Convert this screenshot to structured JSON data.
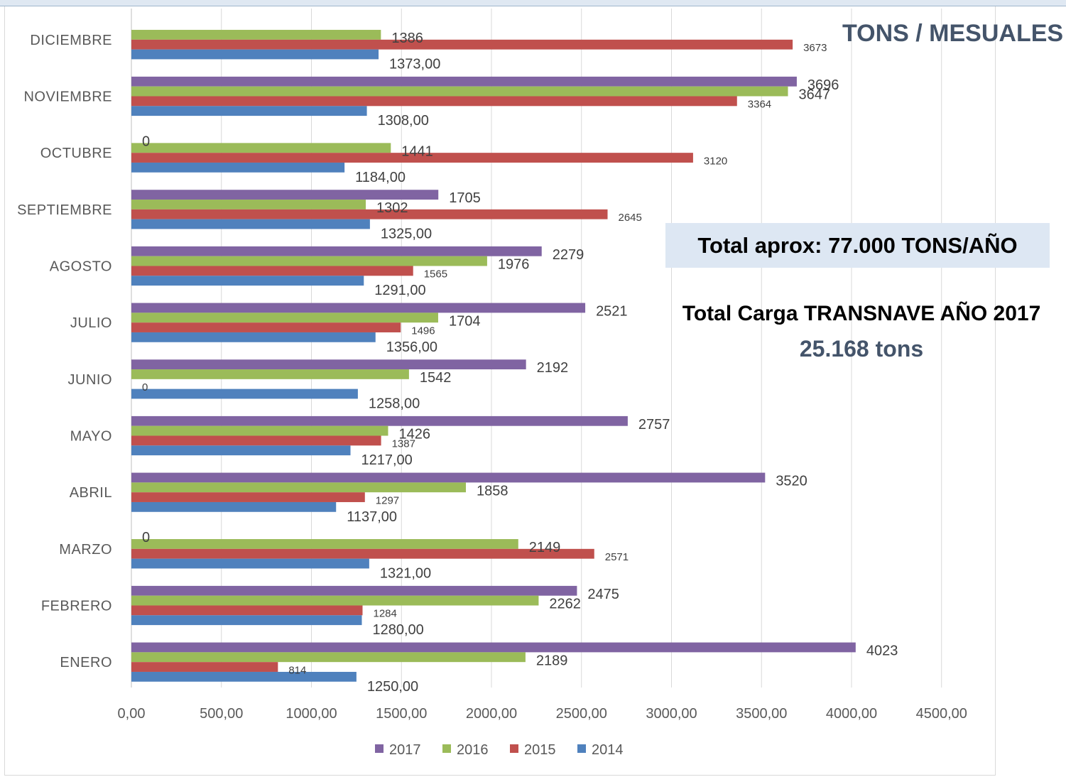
{
  "header": {
    "title": "TONS / MESUALES",
    "total_aprox": "Total aprox: 77.000 TONS/AÑO",
    "carga_title": "Total Carga TRANSNAVE AÑO 2017",
    "carga_value": "25.168 tons"
  },
  "chart_data": {
    "type": "bar",
    "orientation": "horizontal",
    "categories": [
      "ENERO",
      "FEBRERO",
      "MARZO",
      "ABRIL",
      "MAYO",
      "JUNIO",
      "JULIO",
      "AGOSTO",
      "SEPTIEMBRE",
      "OCTUBRE",
      "NOVIEMBRE",
      "DICIEMBRE"
    ],
    "series": [
      {
        "name": "2014",
        "color": "#4f81bd",
        "values": [
          1250,
          1280,
          1321,
          1137,
          1217,
          1258,
          1356,
          1291,
          1325,
          1184,
          1308,
          1373
        ],
        "labels": [
          "1250,00",
          "1280,00",
          "1321,00",
          "1137,00",
          "1217,00",
          "1258,00",
          "1356,00",
          "1291,00",
          "1325,00",
          "1184,00",
          "1308,00",
          "1373,00"
        ]
      },
      {
        "name": "2015",
        "color": "#c0504d",
        "values": [
          814,
          1284,
          2571,
          1297,
          1387,
          0,
          1496,
          1565,
          2645,
          3120,
          3364,
          3673
        ],
        "labels": [
          "814",
          "1284",
          "2571",
          "1297",
          "1387",
          "0",
          "1496",
          "1565",
          "2645",
          "3120",
          "3364",
          "3673"
        ]
      },
      {
        "name": "2016",
        "color": "#9bbb59",
        "values": [
          2189,
          2262,
          2149,
          1858,
          1426,
          1542,
          1704,
          1976,
          1302,
          1441,
          3647,
          1386
        ],
        "labels": [
          "2189",
          "2262",
          "2149",
          "1858",
          "1426",
          "1542",
          "1704",
          "1976",
          "1302",
          "1441",
          "3647",
          "1386"
        ]
      },
      {
        "name": "2017",
        "color": "#8064a2",
        "values": [
          4023,
          2475,
          0,
          3520,
          2757,
          2192,
          2521,
          2279,
          1705,
          0,
          3696,
          null
        ],
        "labels": [
          "4023",
          "2475",
          "0",
          "3520",
          "2757",
          "2192",
          "2521",
          "2279",
          "1705",
          "0",
          "3696",
          null
        ]
      }
    ],
    "xlim": [
      0,
      4500
    ],
    "x_ticks": [
      "0,00",
      "500,00",
      "1000,00",
      "1500,00",
      "2000,00",
      "2500,00",
      "3000,00",
      "3500,00",
      "4000,00",
      "4500,00"
    ],
    "grid": true,
    "legend": {
      "position": "bottom",
      "order": [
        "2017",
        "2016",
        "2015",
        "2014"
      ]
    }
  }
}
